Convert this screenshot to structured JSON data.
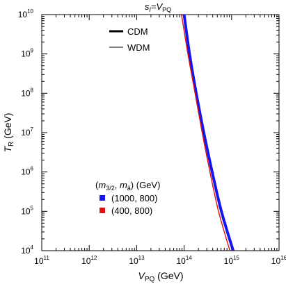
{
  "chart_data": {
    "type": "line",
    "title": "s_I=V_PQ",
    "title_parts": {
      "main": "s",
      "sub": "I",
      "eq": "=V",
      "sub2": "PQ"
    },
    "xlabel_parts": {
      "main": "V",
      "sub": "PQ",
      "unit": " (GeV)"
    },
    "ylabel_parts": {
      "main": "T",
      "sub": "R",
      "unit": " (GeV)"
    },
    "xscale": "log",
    "yscale": "log",
    "xlim": [
      100000000000.0,
      1e+16
    ],
    "ylim": [
      10000.0,
      10000000000.0
    ],
    "x_tick_exponents": [
      11,
      12,
      13,
      14,
      15,
      16
    ],
    "y_tick_exponents": [
      4,
      5,
      6,
      7,
      8,
      9,
      10
    ],
    "grid": false,
    "line_style_legend": {
      "placement": "top-center",
      "entries": [
        {
          "label": "CDM",
          "style": "thick"
        },
        {
          "label": "WDM",
          "style": "thin"
        }
      ]
    },
    "color_legend": {
      "placement": "lower-left",
      "title": "(m_3/2, m_ã) (GeV)",
      "title_parts": {
        "open": "(",
        "m1": "m",
        "sub1": "3/2",
        "sep": ", ",
        "m2": "m",
        "sub2": "ã",
        "close": ")",
        "unit": " (GeV)"
      },
      "entries": [
        {
          "label": "(1000, 800)",
          "color": "#1515ee"
        },
        {
          "label": "(400, 800)",
          "color": "#dd1111"
        }
      ]
    },
    "series": [
      {
        "name": "(1000, 800)",
        "color": "#1515ee",
        "style": "thick",
        "points": [
          [
            100000000000000.0,
            10000000000.0
          ],
          [
            130000000000000.0,
            1000000000.0
          ],
          [
            180000000000000.0,
            100000000.0
          ],
          [
            260000000000000.0,
            10000000.0
          ],
          [
            390000000000000.0,
            1000000.0
          ],
          [
            610000000000000.0,
            100000.0
          ],
          [
            1080000000000000.0,
            10000.0
          ]
        ]
      },
      {
        "name": "(400, 800)",
        "color": "#dd1111",
        "style": "thin",
        "points": [
          [
            88000000000000.0,
            10000000000.0
          ],
          [
            120000000000000.0,
            1000000000.0
          ],
          [
            170000000000000.0,
            100000000.0
          ],
          [
            240000000000000.0,
            10000000.0
          ],
          [
            350000000000000.0,
            1000000.0
          ],
          [
            530000000000000.0,
            100000.0
          ],
          [
            920000000000000.0,
            10000.0
          ]
        ]
      }
    ]
  }
}
